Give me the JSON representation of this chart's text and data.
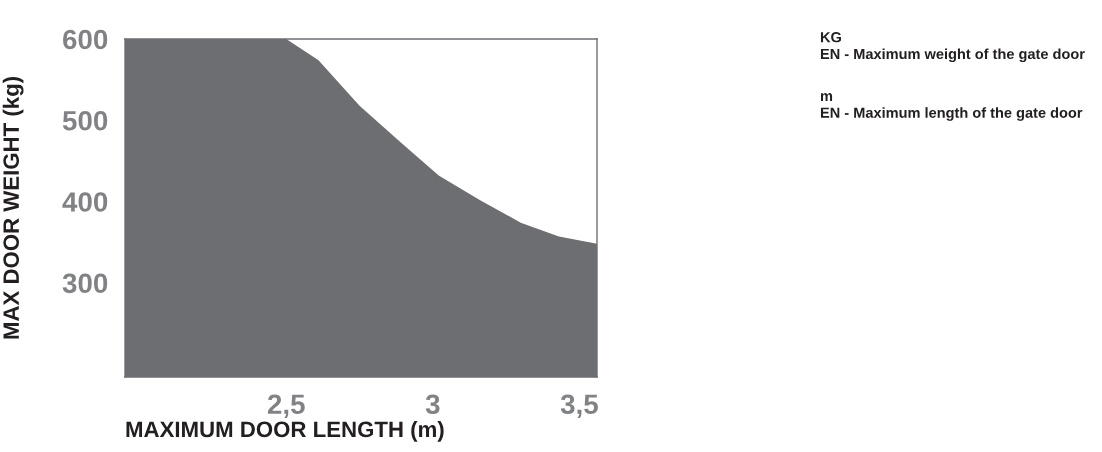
{
  "chart_data": {
    "type": "area",
    "xlabel": "MAXIMUM DOOR LENGTH (m)",
    "ylabel": "MAX DOOR WEIGHT (kg)",
    "x": [
      1.95,
      2.5,
      2.61,
      2.75,
      2.89,
      3.02,
      3.16,
      3.3,
      3.43,
      3.56
    ],
    "series": [
      {
        "color": "#6d6e72",
        "values": [
          600,
          600,
          574,
          518,
          473,
          432,
          402,
          374,
          357,
          348
        ]
      }
    ],
    "xlim": [
      1.95,
      3.56
    ],
    "ylim": [
      184,
      600
    ],
    "xticks": [
      {
        "value": 2.5,
        "label": "2,5"
      },
      3,
      {
        "value": 3.5,
        "label": "3,5"
      }
    ],
    "yticks": [
      300,
      400,
      500,
      600
    ],
    "grid": false,
    "legend": false,
    "annotations": [
      "KG\nEN - Maximum weight of the gate door",
      "m\nEN - Maximum length of the gate door"
    ]
  }
}
